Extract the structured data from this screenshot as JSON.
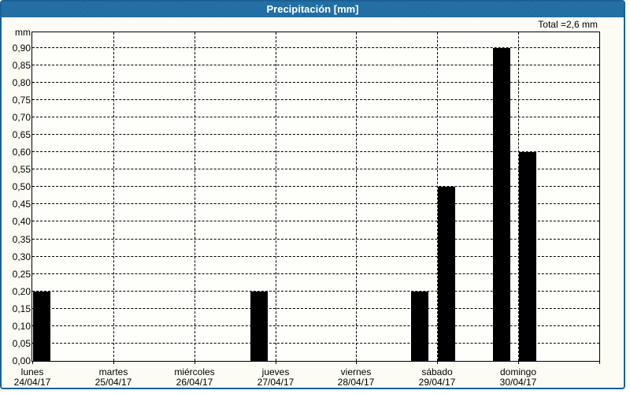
{
  "window": {
    "title": "Precipitación [mm]"
  },
  "summary": {
    "total_label": "Total =2,6 mm"
  },
  "colors": {
    "titlebar": "#1e6ca2",
    "frame": "#1b6095",
    "panel_bg": "#fcfcf4",
    "plot_bg": "#fefefb",
    "bar": "#000000",
    "grid": "#000000",
    "text": "#000000",
    "title_text": "#ffffff"
  },
  "chart_data": {
    "type": "bar",
    "title": "Precipitación [mm]",
    "unit_label": "mm",
    "total_annotation": "Total =2,6 mm",
    "total_mm": 2.6,
    "ylim": [
      0,
      0.945
    ],
    "y_tick_step": 0.05,
    "y_tick_labels": [
      "0,00",
      "0,05",
      "0,10",
      "0,15",
      "0,20",
      "0,25",
      "0,30",
      "0,35",
      "0,40",
      "0,45",
      "0,50",
      "0,55",
      "0,60",
      "0,65",
      "0,70",
      "0,75",
      "0,80",
      "0,85",
      "0,90"
    ],
    "grid": "dashed",
    "legend": "none",
    "x_span_days": 7,
    "x_days": [
      {
        "name": "lunes",
        "date": "24/04/17"
      },
      {
        "name": "martes",
        "date": "25/04/17"
      },
      {
        "name": "miércoles",
        "date": "26/04/17"
      },
      {
        "name": "jueves",
        "date": "27/04/17"
      },
      {
        "name": "viernes",
        "date": "28/04/17"
      },
      {
        "name": "sábado",
        "date": "29/04/17"
      },
      {
        "name": "domingo",
        "date": "30/04/17"
      }
    ],
    "bar_width_days": 0.21,
    "bars": [
      {
        "day": "lunes",
        "pos_days": 0.01,
        "value": 0.2
      },
      {
        "day": "miércoles",
        "pos_days": 2.69,
        "value": 0.2
      },
      {
        "day": "viernes",
        "pos_days": 4.68,
        "value": 0.2
      },
      {
        "day": "sábado",
        "pos_days": 5.01,
        "value": 0.5
      },
      {
        "day": "sábado",
        "pos_days": 5.69,
        "value": 0.9
      },
      {
        "day": "domingo",
        "pos_days": 6.01,
        "value": 0.6
      }
    ]
  }
}
